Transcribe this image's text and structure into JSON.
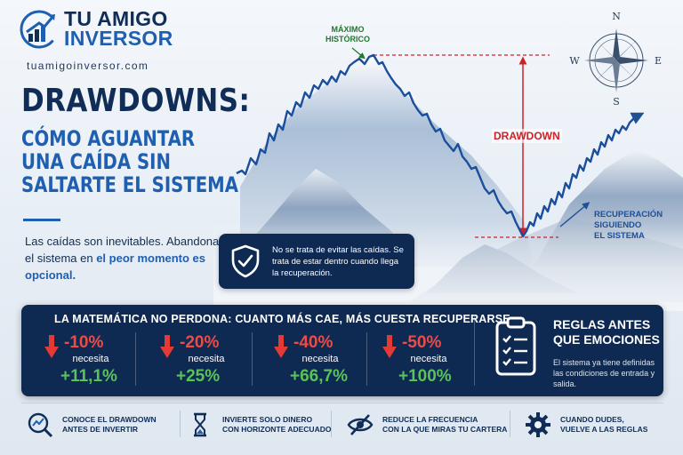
{
  "brand": {
    "line1": "TU AMIGO",
    "line2": "INVERSOR",
    "url": "tuamigoinversor.com"
  },
  "title": {
    "main": "DRAWDOWNS:",
    "sub_lines": [
      "CÓMO AGUANTAR",
      "UNA CAÍDA SIN",
      "SALTARTE EL SISTEMA"
    ]
  },
  "intro": {
    "part1": "Las caídas son inevitables. Abandonar el sistema en ",
    "highlight": "el peor momento es opcional."
  },
  "chart_labels": {
    "max_line1": "MÁXIMO",
    "max_line2": "HISTÓRICO",
    "drawdown": "DRAWDOWN",
    "recovery_line1": "RECUPERACIÓN",
    "recovery_line2": "SIGUIENDO",
    "recovery_line3": "EL SISTEMA"
  },
  "callout": {
    "text": "No se trata de evitar las caídas. Se trata de estar dentro cuando llega la recuperación."
  },
  "math_panel": {
    "title": "LA MATEMÁTICA NO PERDONA: CUANTO MÁS CAE, MÁS CUESTA RECUPERARSE",
    "needs_label": "necesita",
    "stats": [
      {
        "drop": "-10%",
        "recovery": "+11,1%"
      },
      {
        "drop": "-20%",
        "recovery": "+25%"
      },
      {
        "drop": "-40%",
        "recovery": "+66,7%"
      },
      {
        "drop": "-50%",
        "recovery": "+100%"
      }
    ]
  },
  "rules": {
    "title_line1": "REGLAS ANTES",
    "title_line2": "QUE EMOCIONES",
    "text": "El sistema ya tiene definidas las condiciones de entrada y salida."
  },
  "tips": [
    {
      "icon": "chart-magnifier-icon",
      "line1": "CONOCE EL DRAWDOWN",
      "line2": "ANTES DE INVERTIR"
    },
    {
      "icon": "hourglass-icon",
      "line1": "INVIERTE SOLO DINERO",
      "line2": "CON HORIZONTE ADECUADO"
    },
    {
      "icon": "eye-slash-icon",
      "line1": "REDUCE LA FRECUENCIA",
      "line2": "CON LA QUE MIRAS TU CARTERA"
    },
    {
      "icon": "gear-icon",
      "line1": "CUANDO DUDES,",
      "line2": "VUELVE A LAS REGLAS"
    }
  ],
  "compass": {
    "n": "N",
    "s": "S",
    "e": "E",
    "w": "W"
  },
  "colors": {
    "navy": "#0f2a52",
    "blue": "#1f5fb0",
    "red": "#cf2027",
    "green": "#59c25a",
    "green_label": "#1f7a2c"
  }
}
